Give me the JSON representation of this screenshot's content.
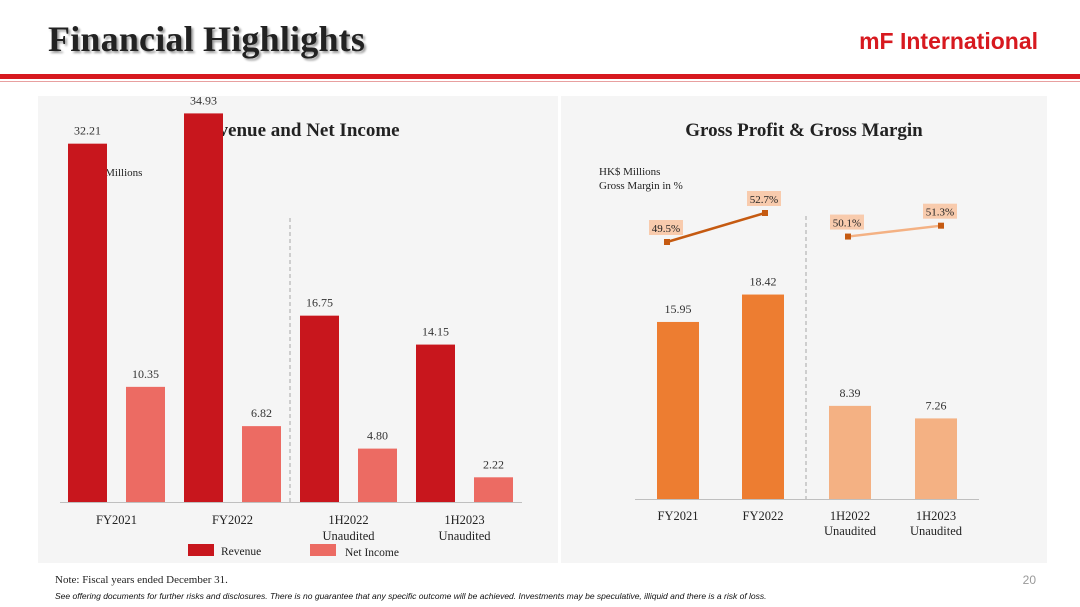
{
  "header": {
    "title": "Financial Highlights",
    "brand": "mF International"
  },
  "chart_data": [
    {
      "type": "bar",
      "title": "Revenue and Net Income",
      "unit_label": "HK$ Millions",
      "categories": [
        [
          "FY2021"
        ],
        [
          "FY2022"
        ],
        [
          "1H2022",
          "Unaudited"
        ],
        [
          "1H2023",
          "Unaudited"
        ]
      ],
      "series": [
        {
          "name": "Revenue",
          "values": [
            32.21,
            34.93,
            16.75,
            14.15
          ],
          "labels": [
            "32.21",
            "34.93",
            "16.75",
            "14.15"
          ],
          "color": "#c8161d"
        },
        {
          "name": "Net Income",
          "values": [
            10.35,
            6.82,
            4.8,
            2.22
          ],
          "labels": [
            "10.35",
            "6.82",
            "4.80",
            "2.22"
          ],
          "color": "#ec6b63"
        }
      ],
      "ylim": [
        0,
        40
      ],
      "legend": "bottom",
      "divider_after_category": 1
    },
    {
      "type": "bar+line",
      "title": "Gross Profit & Gross Margin",
      "unit_label": [
        "HK$ Millions",
        "Gross Margin in %"
      ],
      "categories": [
        [
          "FY2021"
        ],
        [
          "FY2022"
        ],
        [
          "1H2022",
          "Unaudited"
        ],
        [
          "1H2023",
          "Unaudited"
        ]
      ],
      "bars": {
        "values": [
          15.95,
          18.42,
          8.39,
          7.26
        ],
        "labels": [
          "15.95",
          "18.42",
          "8.39",
          "7.26"
        ],
        "colors": [
          "#ed7d31",
          "#ed7d31",
          "#f4b183",
          "#f4b183"
        ]
      },
      "margin_line": {
        "values": [
          49.5,
          52.7,
          50.1,
          51.3
        ],
        "labels": [
          "49.5%",
          "52.7%",
          "50.1%",
          "51.3%"
        ],
        "colors": [
          "#c55a11",
          "#c55a11",
          "#f4b183",
          "#f4b183"
        ],
        "label_bg": "#f8cbad"
      },
      "ylim": [
        0,
        25
      ],
      "divider_after_category": 1
    }
  ],
  "footer": {
    "note": "Note: Fiscal years ended December 31.",
    "disclaimer": "See offering documents for further risks and disclosures. There is no guarantee that any specific outcome will be achieved. Investments may be speculative, illiquid and there is a risk of loss.",
    "page_number": "20"
  }
}
